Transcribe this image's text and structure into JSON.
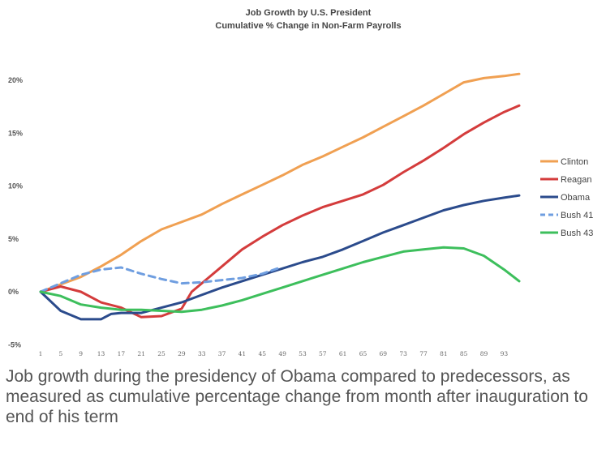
{
  "chart_data": {
    "type": "line",
    "title": "Job Growth by U.S. President",
    "subtitle": "Cumulative % Change in Non-Farm Payrolls",
    "xlabel": "",
    "ylabel": "",
    "y_ticks": [
      "20%",
      "15%",
      "10%",
      "5%",
      "0%",
      "-5%"
    ],
    "y_tick_values": [
      20,
      15,
      10,
      5,
      0,
      -5
    ],
    "x_ticks": [
      "1",
      "5",
      "9",
      "13",
      "17",
      "21",
      "25",
      "29",
      "33",
      "37",
      "41",
      "45",
      "49",
      "53",
      "57",
      "61",
      "65",
      "69",
      "73",
      "77",
      "81",
      "85",
      "89",
      "93"
    ],
    "x_tick_values": [
      1,
      5,
      9,
      13,
      17,
      21,
      25,
      29,
      33,
      37,
      41,
      45,
      49,
      53,
      57,
      61,
      65,
      69,
      73,
      77,
      81,
      85,
      89,
      93
    ],
    "xlim": [
      1,
      96
    ],
    "ylim": [
      -5,
      20
    ],
    "grid": false,
    "legend_position": "right",
    "series": [
      {
        "name": "Clinton",
        "color": "#f0a052",
        "style": "solid",
        "points": [
          [
            1,
            0
          ],
          [
            5,
            0.7
          ],
          [
            9,
            1.4
          ],
          [
            13,
            2.4
          ],
          [
            17,
            3.5
          ],
          [
            21,
            4.8
          ],
          [
            25,
            5.9
          ],
          [
            29,
            6.6
          ],
          [
            33,
            7.3
          ],
          [
            37,
            8.3
          ],
          [
            41,
            9.2
          ],
          [
            45,
            10.1
          ],
          [
            49,
            11
          ],
          [
            53,
            12
          ],
          [
            57,
            12.8
          ],
          [
            61,
            13.7
          ],
          [
            65,
            14.6
          ],
          [
            69,
            15.6
          ],
          [
            73,
            16.6
          ],
          [
            77,
            17.6
          ],
          [
            81,
            18.7
          ],
          [
            85,
            19.8
          ],
          [
            89,
            20.2
          ],
          [
            93,
            20.4
          ],
          [
            96,
            20.6
          ]
        ]
      },
      {
        "name": "Reagan",
        "color": "#d43c3c",
        "style": "solid",
        "points": [
          [
            1,
            0
          ],
          [
            5,
            0.5
          ],
          [
            9,
            0
          ],
          [
            13,
            -1
          ],
          [
            17,
            -1.5
          ],
          [
            21,
            -2.4
          ],
          [
            25,
            -2.3
          ],
          [
            29,
            -1.6
          ],
          [
            31,
            0
          ],
          [
            33,
            0.8
          ],
          [
            37,
            2.4
          ],
          [
            41,
            4
          ],
          [
            45,
            5.2
          ],
          [
            49,
            6.3
          ],
          [
            53,
            7.2
          ],
          [
            57,
            8
          ],
          [
            61,
            8.6
          ],
          [
            65,
            9.2
          ],
          [
            69,
            10.1
          ],
          [
            73,
            11.3
          ],
          [
            77,
            12.4
          ],
          [
            81,
            13.6
          ],
          [
            85,
            14.9
          ],
          [
            89,
            16
          ],
          [
            93,
            17
          ],
          [
            96,
            17.6
          ]
        ]
      },
      {
        "name": "Obama",
        "color": "#2b4b8c",
        "style": "solid",
        "points": [
          [
            1,
            0
          ],
          [
            5,
            -1.8
          ],
          [
            9,
            -2.6
          ],
          [
            13,
            -2.6
          ],
          [
            15,
            -2.1
          ],
          [
            17,
            -2
          ],
          [
            21,
            -2
          ],
          [
            25,
            -1.5
          ],
          [
            29,
            -1
          ],
          [
            33,
            -0.3
          ],
          [
            37,
            0.4
          ],
          [
            41,
            1
          ],
          [
            45,
            1.6
          ],
          [
            49,
            2.2
          ],
          [
            53,
            2.8
          ],
          [
            57,
            3.3
          ],
          [
            61,
            4
          ],
          [
            65,
            4.8
          ],
          [
            69,
            5.6
          ],
          [
            73,
            6.3
          ],
          [
            77,
            7
          ],
          [
            81,
            7.7
          ],
          [
            85,
            8.2
          ],
          [
            89,
            8.6
          ],
          [
            93,
            8.9
          ],
          [
            96,
            9.1
          ]
        ]
      },
      {
        "name": "Bush 41",
        "color": "#6f9ee0",
        "style": "dashed",
        "points": [
          [
            1,
            0
          ],
          [
            5,
            0.8
          ],
          [
            9,
            1.6
          ],
          [
            13,
            2.1
          ],
          [
            17,
            2.3
          ],
          [
            21,
            1.7
          ],
          [
            25,
            1.2
          ],
          [
            29,
            0.8
          ],
          [
            33,
            0.9
          ],
          [
            37,
            1.1
          ],
          [
            41,
            1.3
          ],
          [
            45,
            1.7
          ],
          [
            48,
            2.2
          ]
        ]
      },
      {
        "name": "Bush 43",
        "color": "#3dbf5c",
        "style": "solid",
        "points": [
          [
            1,
            0
          ],
          [
            5,
            -0.4
          ],
          [
            9,
            -1.2
          ],
          [
            13,
            -1.5
          ],
          [
            17,
            -1.7
          ],
          [
            21,
            -1.7
          ],
          [
            25,
            -1.8
          ],
          [
            29,
            -1.9
          ],
          [
            33,
            -1.7
          ],
          [
            37,
            -1.3
          ],
          [
            41,
            -0.8
          ],
          [
            45,
            -0.2
          ],
          [
            49,
            0.4
          ],
          [
            53,
            1
          ],
          [
            57,
            1.6
          ],
          [
            61,
            2.2
          ],
          [
            65,
            2.8
          ],
          [
            69,
            3.3
          ],
          [
            73,
            3.8
          ],
          [
            77,
            4
          ],
          [
            81,
            4.2
          ],
          [
            85,
            4.1
          ],
          [
            89,
            3.4
          ],
          [
            93,
            2.1
          ],
          [
            96,
            1
          ]
        ]
      }
    ]
  },
  "caption": "Job growth during the presidency of Obama compared to predecessors, as measured as cumulative percentage change from month after inauguration to end of his term"
}
